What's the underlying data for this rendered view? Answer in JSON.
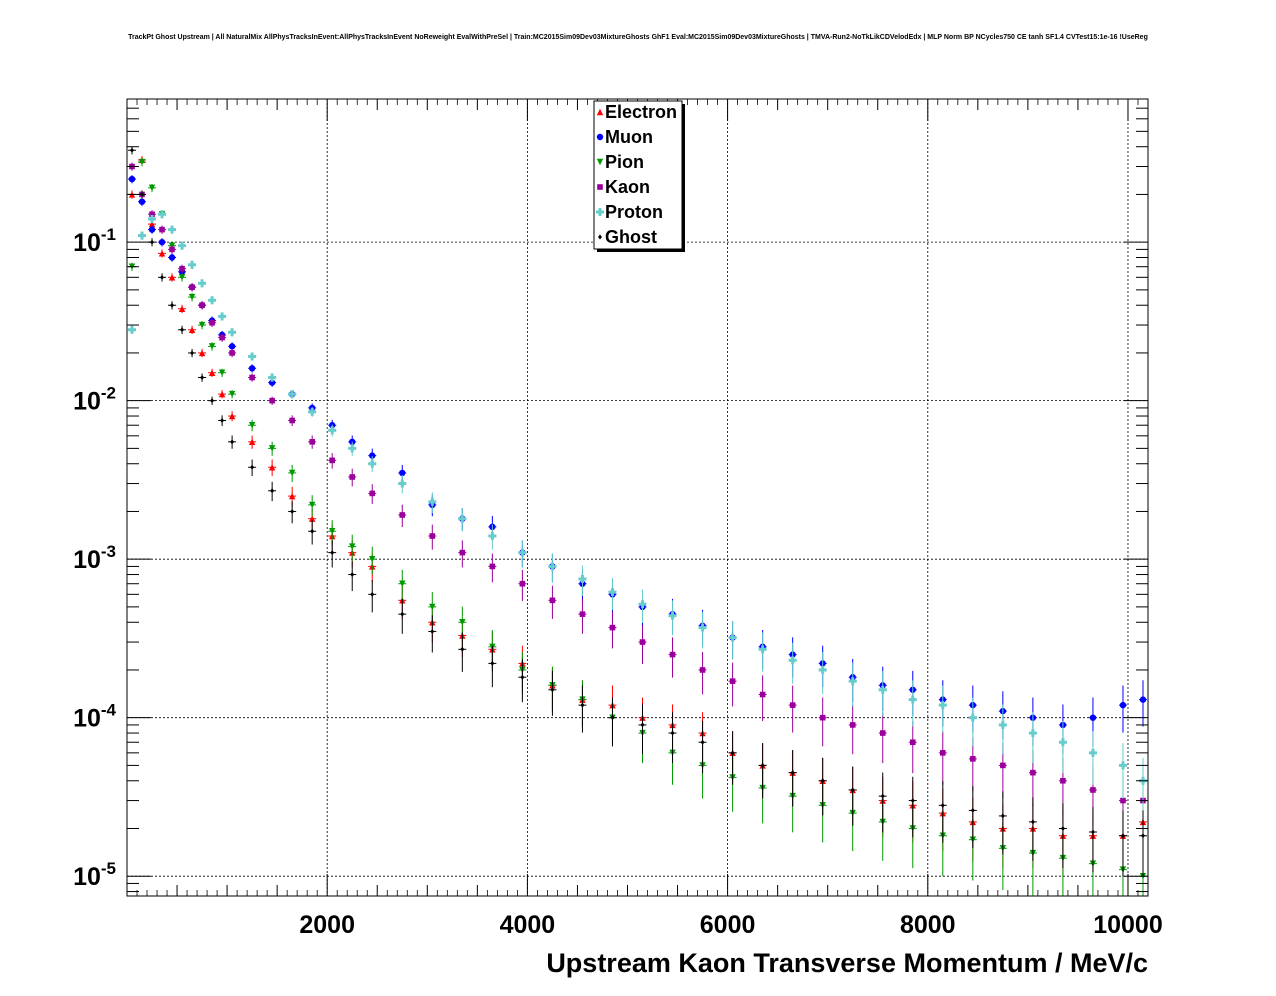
{
  "chart_data": {
    "type": "scatter",
    "title": "TrackPt Ghost Upstream | All NaturalMix AllPhysTracksInEvent:AllPhysTracksInEvent NoReweight EvalWithPreSel | Train:MC2015Sim09Dev03MixtureGhosts GhF1 Eval:MC2015Sim09Dev03MixtureGhosts | TMVA-Run2-NoTkLikCDVelodEdx | MLP Norm BP NCycles750 CE tanh SF1.4 CVTest15:1e-16 !UseReg",
    "xlabel": "Upstream Kaon Transverse Momentum / MeV/c",
    "ylabel": "",
    "xlim": [
      0,
      10200
    ],
    "ylim": [
      7.5e-06,
      0.8
    ],
    "yscale": "log",
    "grid": true,
    "legend_position": "top-center",
    "x_tick_labels": [
      "2000",
      "4000",
      "6000",
      "8000",
      "10000"
    ],
    "y_tick_labels": [
      "10^-5",
      "10^-4",
      "10^-3",
      "10^-2",
      "10^-1"
    ],
    "series": [
      {
        "name": "Electron",
        "color": "#ff0000",
        "marker": "triangle-up",
        "x": [
          50,
          150,
          250,
          350,
          450,
          550,
          650,
          750,
          850,
          950,
          1050,
          1250,
          1450,
          1650,
          1850,
          2050,
          2250,
          2450,
          2750,
          3050,
          3350,
          3650,
          3950,
          4250,
          4550,
          4850,
          5150,
          5450,
          5750,
          6050,
          6350,
          6650,
          6950,
          7250,
          7550,
          7850,
          8150,
          8450,
          8750,
          9050,
          9350,
          9650,
          9950,
          10150
        ],
        "y": [
          0.2,
          0.33,
          0.13,
          0.085,
          0.06,
          0.038,
          0.028,
          0.02,
          0.015,
          0.011,
          0.008,
          0.0055,
          0.0038,
          0.0025,
          0.0018,
          0.0014,
          0.0011,
          0.0009,
          0.00055,
          0.0004,
          0.00033,
          0.00027,
          0.00022,
          0.00016,
          0.00013,
          0.00012,
          0.0001,
          9e-05,
          8e-05,
          6e-05,
          5e-05,
          4.5e-05,
          4e-05,
          3.5e-05,
          3e-05,
          2.8e-05,
          2.5e-05,
          2.2e-05,
          2e-05,
          2e-05,
          1.8e-05,
          1.8e-05,
          1.8e-05,
          2.2e-05
        ]
      },
      {
        "name": "Muon",
        "color": "#0000ff",
        "marker": "circle",
        "x": [
          50,
          150,
          250,
          350,
          450,
          550,
          650,
          750,
          850,
          950,
          1050,
          1250,
          1450,
          1650,
          1850,
          2050,
          2250,
          2450,
          2750,
          3050,
          3350,
          3650,
          3950,
          4250,
          4550,
          4850,
          5150,
          5450,
          5750,
          6050,
          6350,
          6650,
          6950,
          7250,
          7550,
          7850,
          8150,
          8450,
          8750,
          9050,
          9350,
          9650,
          9950,
          10150
        ],
        "y": [
          0.25,
          0.18,
          0.12,
          0.1,
          0.08,
          0.065,
          0.052,
          0.04,
          0.032,
          0.026,
          0.022,
          0.016,
          0.013,
          0.011,
          0.009,
          0.007,
          0.0055,
          0.0045,
          0.0035,
          0.0022,
          0.0018,
          0.0016,
          0.0011,
          0.0009,
          0.0007,
          0.0006,
          0.0005,
          0.00045,
          0.00038,
          0.00032,
          0.00028,
          0.00025,
          0.00022,
          0.00018,
          0.00016,
          0.00015,
          0.00013,
          0.00012,
          0.00011,
          0.0001,
          9e-05,
          0.0001,
          0.00012,
          0.00013
        ]
      },
      {
        "name": "Pion",
        "color": "#009900",
        "marker": "triangle-down",
        "x": [
          50,
          150,
          250,
          350,
          450,
          550,
          650,
          750,
          850,
          950,
          1050,
          1250,
          1450,
          1650,
          1850,
          2050,
          2250,
          2450,
          2750,
          3050,
          3350,
          3650,
          3950,
          4250,
          4550,
          4850,
          5150,
          5450,
          5750,
          6050,
          6350,
          6650,
          6950,
          7250,
          7550,
          7850,
          8150,
          8450,
          8750,
          9050,
          9350,
          9650,
          9950,
          10150
        ],
        "y": [
          0.07,
          0.32,
          0.22,
          0.15,
          0.095,
          0.06,
          0.045,
          0.03,
          0.022,
          0.015,
          0.011,
          0.007,
          0.005,
          0.0035,
          0.0022,
          0.0015,
          0.0012,
          0.001,
          0.0007,
          0.0005,
          0.0004,
          0.00028,
          0.0002,
          0.00016,
          0.00013,
          0.0001,
          8e-05,
          6e-05,
          5e-05,
          4.2e-05,
          3.6e-05,
          3.2e-05,
          2.8e-05,
          2.5e-05,
          2.2e-05,
          2e-05,
          1.8e-05,
          1.7e-05,
          1.5e-05,
          1.4e-05,
          1.3e-05,
          1.2e-05,
          1.1e-05,
          1e-05
        ]
      },
      {
        "name": "Kaon",
        "color": "#990099",
        "marker": "square",
        "x": [
          50,
          150,
          250,
          350,
          450,
          550,
          650,
          750,
          850,
          950,
          1050,
          1250,
          1450,
          1650,
          1850,
          2050,
          2250,
          2450,
          2750,
          3050,
          3350,
          3650,
          3950,
          4250,
          4550,
          4850,
          5150,
          5450,
          5750,
          6050,
          6350,
          6650,
          6950,
          7250,
          7550,
          7850,
          8150,
          8450,
          8750,
          9050,
          9350,
          9650,
          9950,
          10150
        ],
        "y": [
          0.3,
          0.2,
          0.15,
          0.12,
          0.09,
          0.068,
          0.052,
          0.04,
          0.031,
          0.025,
          0.02,
          0.014,
          0.01,
          0.0075,
          0.0055,
          0.0042,
          0.0033,
          0.0026,
          0.0019,
          0.0014,
          0.0011,
          0.0009,
          0.0007,
          0.00055,
          0.00045,
          0.00037,
          0.0003,
          0.00025,
          0.0002,
          0.00017,
          0.00014,
          0.00012,
          0.0001,
          9e-05,
          8e-05,
          7e-05,
          6e-05,
          5.5e-05,
          5e-05,
          4.5e-05,
          4e-05,
          3.5e-05,
          3e-05,
          3e-05
        ]
      },
      {
        "name": "Proton",
        "color": "#66cccc",
        "marker": "cross",
        "x": [
          50,
          150,
          250,
          350,
          450,
          550,
          650,
          750,
          850,
          950,
          1050,
          1250,
          1450,
          1650,
          1850,
          2050,
          2250,
          2450,
          2750,
          3050,
          3350,
          3650,
          3950,
          4250,
          4550,
          4850,
          5150,
          5450,
          5750,
          6050,
          6350,
          6650,
          6950,
          7250,
          7550,
          7850,
          8150,
          8450,
          8750,
          9050,
          9350,
          9650,
          9950,
          10150
        ],
        "y": [
          0.028,
          0.11,
          0.14,
          0.15,
          0.12,
          0.095,
          0.072,
          0.055,
          0.043,
          0.034,
          0.027,
          0.019,
          0.014,
          0.011,
          0.0085,
          0.0065,
          0.005,
          0.004,
          0.003,
          0.0023,
          0.0018,
          0.0014,
          0.0011,
          0.0009,
          0.00075,
          0.00062,
          0.00052,
          0.00044,
          0.00037,
          0.00032,
          0.00027,
          0.00023,
          0.0002,
          0.00017,
          0.00015,
          0.00013,
          0.00012,
          0.0001,
          9e-05,
          8e-05,
          7e-05,
          6e-05,
          5e-05,
          4e-05
        ]
      },
      {
        "name": "Ghost",
        "color": "#000000",
        "marker": "diamond",
        "x": [
          50,
          150,
          250,
          350,
          450,
          550,
          650,
          750,
          850,
          950,
          1050,
          1250,
          1450,
          1650,
          1850,
          2050,
          2250,
          2450,
          2750,
          3050,
          3350,
          3650,
          3950,
          4250,
          4550,
          4850,
          5150,
          5450,
          5750,
          6050,
          6350,
          6650,
          6950,
          7250,
          7550,
          7850,
          8150,
          8450,
          8750,
          9050,
          9350,
          9650,
          9950,
          10150
        ],
        "y": [
          0.38,
          0.2,
          0.1,
          0.06,
          0.04,
          0.028,
          0.02,
          0.014,
          0.01,
          0.0075,
          0.0055,
          0.0038,
          0.0027,
          0.002,
          0.0015,
          0.0011,
          0.0008,
          0.0006,
          0.00045,
          0.00035,
          0.00027,
          0.00022,
          0.00018,
          0.00015,
          0.00012,
          0.0001,
          9e-05,
          8e-05,
          7e-05,
          6e-05,
          5e-05,
          4.5e-05,
          4e-05,
          3.5e-05,
          3.2e-05,
          3e-05,
          2.8e-05,
          2.6e-05,
          2.4e-05,
          2.2e-05,
          2e-05,
          1.9e-05,
          1.8e-05,
          1.8e-05
        ]
      }
    ]
  }
}
